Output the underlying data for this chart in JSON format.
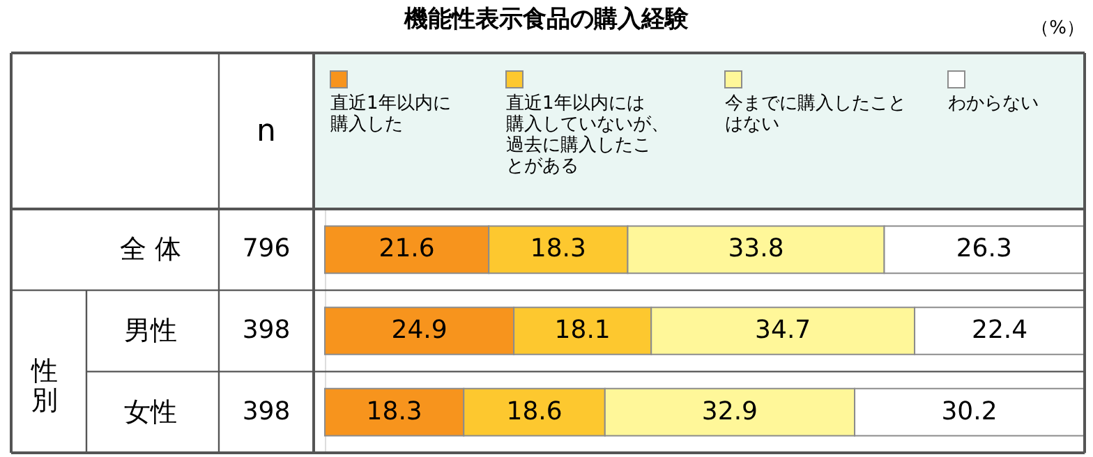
{
  "chart_data": {
    "type": "bar",
    "orientation": "horizontal",
    "stacked": true,
    "data_labels": true,
    "title": "機能性表示食品の購入経験",
    "annotations": [
      "（%）",
      "n",
      "796",
      "398",
      "398",
      "性別"
    ],
    "categories": [
      "全 体",
      "男性",
      "女性"
    ],
    "series": [
      {
        "name": "直近1年以内に購入した",
        "color": "#f7941d",
        "values": [
          21.6,
          24.9,
          18.3
        ]
      },
      {
        "name": "直近1年以内には購入していないが、過去に購入したことがある",
        "color": "#fdc82f",
        "values": [
          18.3,
          18.1,
          18.6
        ]
      },
      {
        "name": "今までに購入したことはない",
        "color": "#fff799",
        "values": [
          33.8,
          34.7,
          32.9
        ]
      },
      {
        "name": "わからない",
        "color": "#ffffff",
        "values": [
          26.3,
          22.4,
          30.2
        ]
      }
    ],
    "legend": "top"
  }
}
